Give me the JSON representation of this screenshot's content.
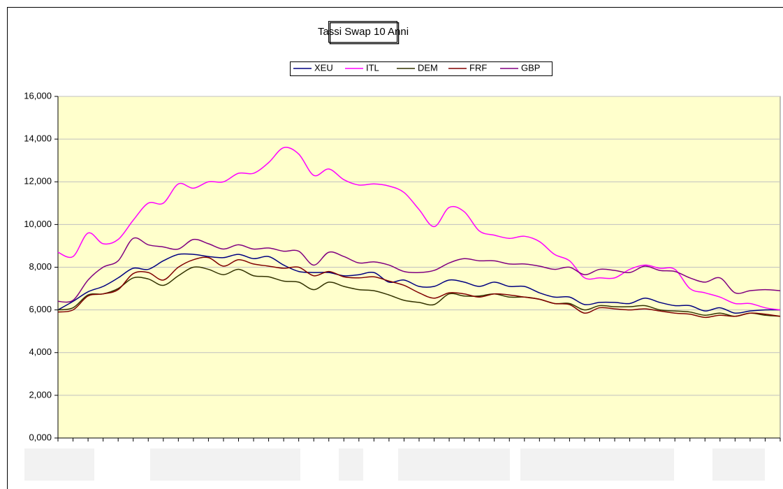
{
  "chart_data": {
    "type": "line",
    "title": "Tassi Swap 10 Anni",
    "categories": [
      null,
      null,
      null,
      null,
      null,
      null,
      null,
      null,
      null,
      null,
      null,
      null,
      null,
      null,
      null,
      null,
      null,
      null,
      null,
      null,
      null,
      null,
      null,
      null,
      null,
      null,
      null,
      null,
      null,
      null,
      null,
      null,
      null,
      null,
      null,
      null,
      null,
      null,
      null,
      null,
      null,
      null,
      null,
      null,
      null,
      null,
      null,
      null,
      null
    ],
    "ylim": [
      0,
      16
    ],
    "yticks": [
      {
        "value": 0,
        "label": "0,000"
      },
      {
        "value": 2,
        "label": "2,000"
      },
      {
        "value": 4,
        "label": "4,000"
      },
      {
        "value": 6,
        "label": "6,000"
      },
      {
        "value": 8,
        "label": "8,000"
      },
      {
        "value": 10,
        "label": "10,000"
      },
      {
        "value": 12,
        "label": "12,000"
      },
      {
        "value": 14,
        "label": "14,000"
      },
      {
        "value": 16,
        "label": "16,000"
      }
    ],
    "grid": true,
    "legend": "top",
    "plot_background": "#ffffcc",
    "smooth": true,
    "series": [
      {
        "name": "XEU",
        "color": "#000080",
        "values": [
          6.0,
          6.4,
          6.85,
          7.1,
          7.5,
          7.95,
          7.9,
          8.3,
          8.6,
          8.6,
          8.5,
          8.45,
          8.6,
          8.4,
          8.5,
          8.1,
          7.8,
          7.75,
          7.75,
          7.6,
          7.65,
          7.75,
          7.3,
          7.4,
          7.1,
          7.1,
          7.4,
          7.3,
          7.1,
          7.3,
          7.1,
          7.1,
          6.8,
          6.6,
          6.6,
          6.25,
          6.35,
          6.35,
          6.3,
          6.55,
          6.35,
          6.2,
          6.2,
          5.95,
          6.1,
          5.85,
          5.95,
          6.0,
          6.0
        ]
      },
      {
        "name": "ITL",
        "color": "#ff00ff",
        "values": [
          8.7,
          8.5,
          9.6,
          9.1,
          9.3,
          10.2,
          11.0,
          11.0,
          11.9,
          11.7,
          12.0,
          12.0,
          12.4,
          12.4,
          12.9,
          13.6,
          13.3,
          12.3,
          12.6,
          12.1,
          11.85,
          11.9,
          11.8,
          11.5,
          10.7,
          9.9,
          10.8,
          10.6,
          9.7,
          9.5,
          9.35,
          9.45,
          9.2,
          8.6,
          8.3,
          7.5,
          7.5,
          7.5,
          7.9,
          8.1,
          7.95,
          7.9,
          7.0,
          6.8,
          6.6,
          6.3,
          6.3,
          6.1,
          6.0
        ]
      },
      {
        "name": "DEM",
        "color": "#333300",
        "values": [
          6.0,
          6.1,
          6.7,
          6.75,
          7.0,
          7.5,
          7.45,
          7.15,
          7.6,
          8.0,
          7.9,
          7.65,
          7.9,
          7.6,
          7.55,
          7.35,
          7.3,
          6.95,
          7.3,
          7.1,
          6.95,
          6.9,
          6.7,
          6.45,
          6.35,
          6.25,
          6.75,
          6.65,
          6.65,
          6.75,
          6.6,
          6.6,
          6.5,
          6.3,
          6.3,
          6.0,
          6.2,
          6.15,
          6.15,
          6.2,
          6.0,
          5.95,
          5.9,
          5.75,
          5.85,
          5.7,
          5.85,
          5.75,
          5.7
        ]
      },
      {
        "name": "FRF",
        "color": "#800000",
        "values": [
          5.9,
          6.0,
          6.65,
          6.75,
          6.95,
          7.7,
          7.75,
          7.4,
          8.0,
          8.35,
          8.45,
          8.05,
          8.35,
          8.15,
          8.05,
          7.95,
          8.0,
          7.6,
          7.8,
          7.55,
          7.5,
          7.55,
          7.35,
          7.15,
          6.8,
          6.55,
          6.8,
          6.75,
          6.6,
          6.75,
          6.7,
          6.6,
          6.5,
          6.3,
          6.25,
          5.85,
          6.1,
          6.05,
          6.0,
          6.05,
          5.95,
          5.85,
          5.8,
          5.65,
          5.75,
          5.7,
          5.85,
          5.8,
          5.7
        ]
      },
      {
        "name": "GBP",
        "color": "#800080",
        "values": [
          6.4,
          6.45,
          7.4,
          8.0,
          8.3,
          9.35,
          9.05,
          8.95,
          8.85,
          9.3,
          9.1,
          8.85,
          9.05,
          8.85,
          8.9,
          8.75,
          8.75,
          8.1,
          8.7,
          8.5,
          8.2,
          8.25,
          8.1,
          7.8,
          7.75,
          7.85,
          8.2,
          8.4,
          8.3,
          8.3,
          8.15,
          8.15,
          8.05,
          7.9,
          8.0,
          7.65,
          7.9,
          7.85,
          7.75,
          8.05,
          7.85,
          7.8,
          7.5,
          7.3,
          7.5,
          6.8,
          6.9,
          6.95,
          6.9
        ]
      }
    ]
  }
}
